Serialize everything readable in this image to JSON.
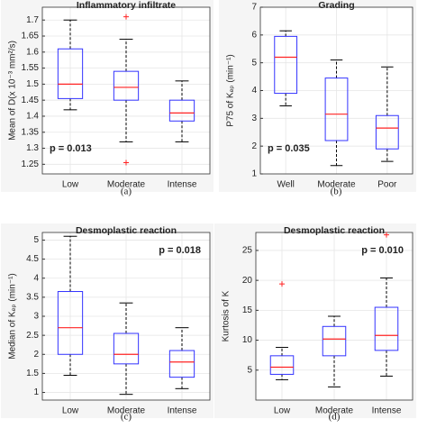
{
  "chart_data": [
    {
      "type": "box",
      "title": "Inflammatory infiltrate",
      "ylabel": "Mean of D(x 10⁻³ mm²/s)",
      "panel_label": "(a)",
      "annotation": "p = 0.013",
      "categories": [
        "Low",
        "Moderate",
        "Intense"
      ],
      "boxes": [
        {
          "min": 1.42,
          "q1": 1.455,
          "median": 1.5,
          "q3": 1.61,
          "max": 1.7,
          "outliers": []
        },
        {
          "min": 1.32,
          "q1": 1.45,
          "median": 1.49,
          "q3": 1.54,
          "max": 1.64,
          "outliers": [
            1.71,
            1.255
          ]
        },
        {
          "min": 1.32,
          "q1": 1.385,
          "median": 1.41,
          "q3": 1.45,
          "max": 1.51,
          "outliers": []
        }
      ],
      "ylim": [
        1.22,
        1.74
      ],
      "yticks": [
        1.25,
        1.3,
        1.35,
        1.4,
        1.45,
        1.5,
        1.55,
        1.6,
        1.65,
        1.7
      ],
      "grid": true,
      "box_color": "#3333ff",
      "median_color": "#ff2222",
      "annotation_corner": "bottom-left"
    },
    {
      "type": "box",
      "title": "Grading",
      "ylabel": "P75 of Kₑₚ (min⁻¹)",
      "panel_label": "(b)",
      "annotation": "p = 0.035",
      "categories": [
        "Well",
        "Moderate",
        "Poor"
      ],
      "boxes": [
        {
          "min": 3.45,
          "q1": 3.9,
          "median": 5.2,
          "q3": 5.95,
          "max": 6.15,
          "outliers": []
        },
        {
          "min": 1.3,
          "q1": 2.2,
          "median": 3.15,
          "q3": 4.45,
          "max": 5.1,
          "outliers": []
        },
        {
          "min": 1.45,
          "q1": 1.9,
          "median": 2.65,
          "q3": 3.1,
          "max": 4.85,
          "outliers": []
        }
      ],
      "ylim": [
        1,
        7
      ],
      "yticks": [
        1,
        2,
        3,
        4,
        5,
        6,
        7
      ],
      "grid": true,
      "box_color": "#3333ff",
      "median_color": "#ff2222",
      "annotation_corner": "bottom-left"
    },
    {
      "type": "box",
      "title": "Desmoplastic reaction",
      "ylabel": "Median of Kₑₚ (min⁻¹)",
      "panel_label": "(c)",
      "annotation": "p = 0.018",
      "categories": [
        "Low",
        "Moderate",
        "Intense"
      ],
      "boxes": [
        {
          "min": 1.45,
          "q1": 2.0,
          "median": 2.7,
          "q3": 3.65,
          "max": 5.1,
          "outliers": []
        },
        {
          "min": 0.95,
          "q1": 1.75,
          "median": 2.0,
          "q3": 2.55,
          "max": 3.35,
          "outliers": []
        },
        {
          "min": 1.1,
          "q1": 1.4,
          "median": 1.8,
          "q3": 2.1,
          "max": 2.7,
          "outliers": []
        }
      ],
      "ylim": [
        0.8,
        5.2
      ],
      "yticks": [
        1,
        1.5,
        2,
        2.5,
        3,
        3.5,
        4,
        4.5,
        5
      ],
      "grid": true,
      "box_color": "#3333ff",
      "median_color": "#ff2222",
      "annotation_corner": "top-right"
    },
    {
      "type": "box",
      "title": "Desmoplastic reaction",
      "ylabel": "Kurtosis of K",
      "panel_label": "(d)",
      "annotation": "p = 0.010",
      "categories": [
        "Low",
        "Moderate",
        "Intense"
      ],
      "boxes": [
        {
          "min": 3.4,
          "q1": 4.3,
          "median": 5.5,
          "q3": 7.4,
          "max": 8.8,
          "outliers": [
            19.4
          ]
        },
        {
          "min": 2.2,
          "q1": 7.4,
          "median": 10.2,
          "q3": 12.3,
          "max": 14.0,
          "outliers": []
        },
        {
          "min": 4.0,
          "q1": 8.3,
          "median": 10.8,
          "q3": 15.5,
          "max": 20.4,
          "outliers": [
            27.6
          ]
        }
      ],
      "ylim": [
        0,
        28
      ],
      "yticks": [
        5,
        10,
        15,
        20,
        25
      ],
      "grid": true,
      "box_color": "#3333ff",
      "median_color": "#ff2222",
      "annotation_corner": "top-right"
    }
  ]
}
